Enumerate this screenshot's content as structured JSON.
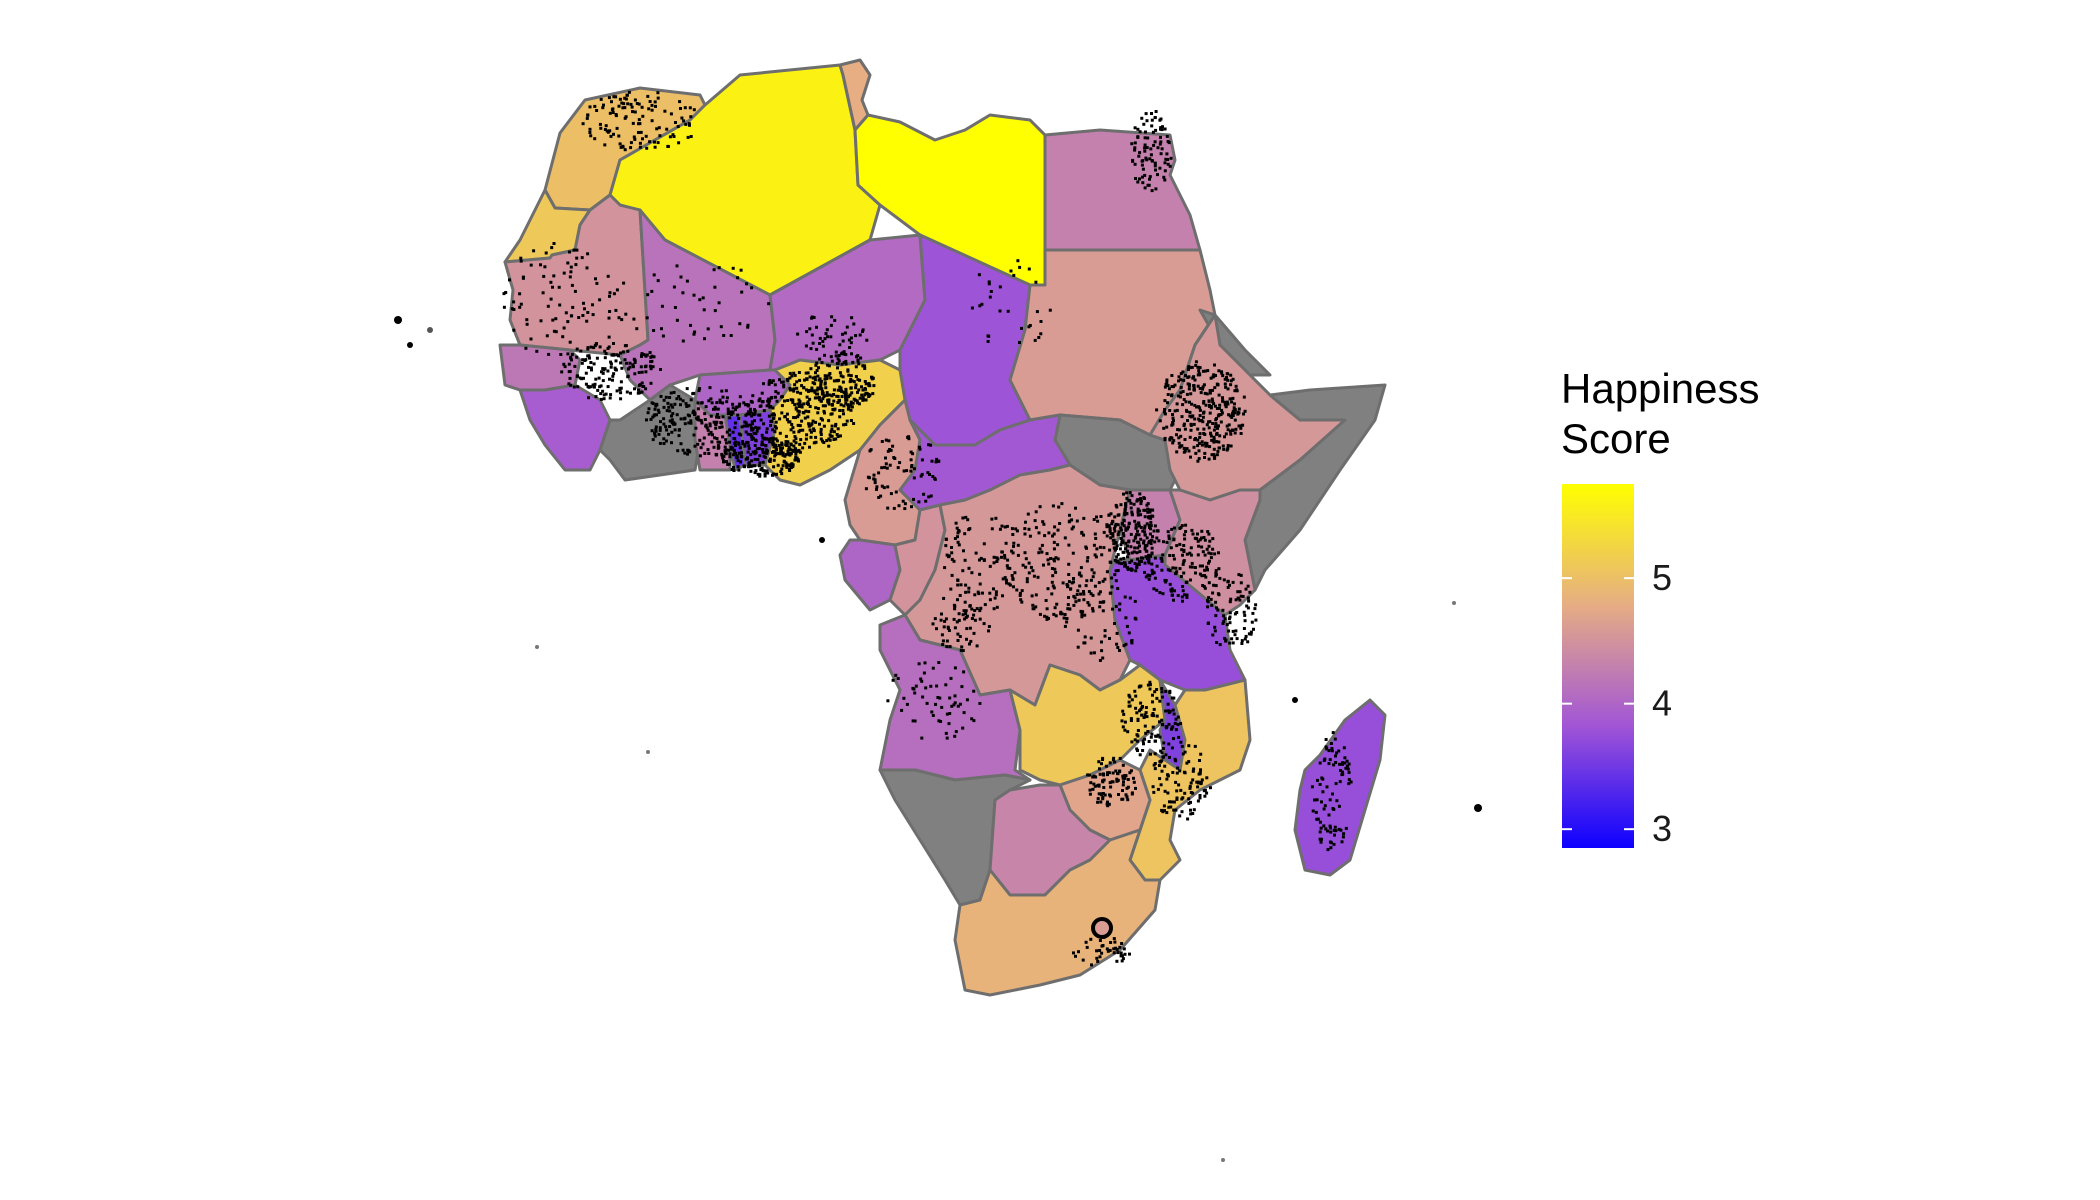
{
  "legend": {
    "title_line1": "Happiness",
    "title_line2": "Score",
    "ticks": [
      {
        "value": 3,
        "label": "3"
      },
      {
        "value": 4,
        "label": "4"
      },
      {
        "value": 5,
        "label": "5"
      }
    ],
    "range": [
      2.85,
      5.75
    ],
    "gradient": [
      "#0d00ff",
      "#a155d6",
      "#e6ad84",
      "#ffff00"
    ]
  },
  "map": {
    "region": "Africa",
    "no_data_color": "#808080",
    "border_color": "#6e6e6e",
    "point_color": "#000000",
    "countries": [
      {
        "name": "Morocco",
        "score": 5.0
      },
      {
        "name": "Western Sahara",
        "score": 5.1
      },
      {
        "name": "Algeria",
        "score": 5.6
      },
      {
        "name": "Tunisia",
        "score": 4.8
      },
      {
        "name": "Libya",
        "score": 5.75
      },
      {
        "name": "Egypt",
        "score": 4.3
      },
      {
        "name": "Mauritania",
        "score": 4.5
      },
      {
        "name": "Mali",
        "score": 4.15
      },
      {
        "name": "Niger",
        "score": 4.05
      },
      {
        "name": "Chad",
        "score": 3.8
      },
      {
        "name": "Sudan",
        "score": 4.6
      },
      {
        "name": "South Sudan",
        "score": null
      },
      {
        "name": "Eritrea",
        "score": null
      },
      {
        "name": "Somalia",
        "score": null
      },
      {
        "name": "Ethiopia",
        "score": 4.55
      },
      {
        "name": "Senegal",
        "score": 4.2
      },
      {
        "name": "Guinea",
        "score": 3.9
      },
      {
        "name": "Burkina Faso",
        "score": 4.0
      },
      {
        "name": "Ghana",
        "score": 4.3
      },
      {
        "name": "Togo",
        "score": 3.4
      },
      {
        "name": "Benin",
        "score": 3.6
      },
      {
        "name": "Nigeria",
        "score": 5.2
      },
      {
        "name": "Cameroon",
        "score": 4.6
      },
      {
        "name": "Central African Republic",
        "score": 3.85
      },
      {
        "name": "Gabon",
        "score": 4.0
      },
      {
        "name": "Republic of the Congo",
        "score": 4.5
      },
      {
        "name": "DR Congo",
        "score": 4.55
      },
      {
        "name": "Uganda",
        "score": 4.3
      },
      {
        "name": "Kenya",
        "score": 4.45
      },
      {
        "name": "Tanzania",
        "score": 3.75
      },
      {
        "name": "Angola",
        "score": 4.1
      },
      {
        "name": "Zambia",
        "score": 5.1
      },
      {
        "name": "Malawi",
        "score": 3.6
      },
      {
        "name": "Mozambique",
        "score": 5.05
      },
      {
        "name": "Zimbabwe",
        "score": 4.7
      },
      {
        "name": "Namibia",
        "score": null
      },
      {
        "name": "Botswana",
        "score": 4.35
      },
      {
        "name": "South Africa",
        "score": 4.85
      },
      {
        "name": "Madagascar",
        "score": 3.75
      }
    ]
  }
}
